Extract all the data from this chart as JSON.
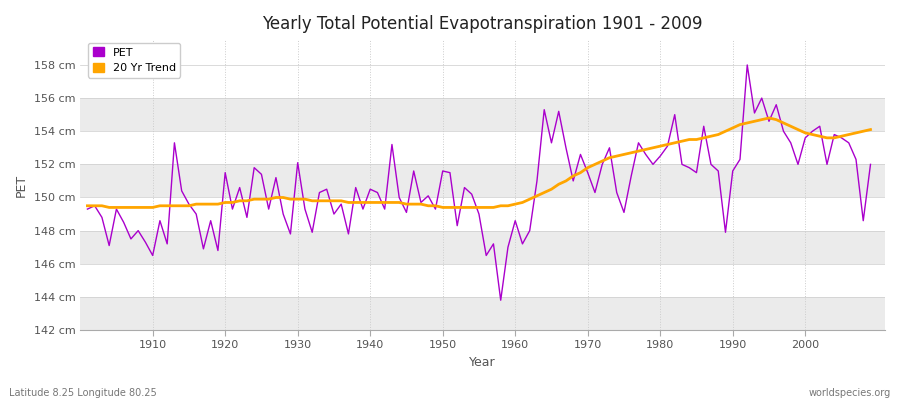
{
  "title": "Yearly Total Potential Evapotranspiration 1901 - 2009",
  "xlabel": "Year",
  "ylabel": "PET",
  "lat_lon_label": "Latitude 8.25 Longitude 80.25",
  "source_label": "worldspecies.org",
  "pet_color": "#AA00CC",
  "trend_color": "#FFA500",
  "bg_color": "#FFFFFF",
  "plot_bg_color": "#FFFFFF",
  "band_color": "#EBEBEB",
  "grid_color": "#CCCCCC",
  "ylim": [
    142,
    159
  ],
  "ytick_labels": [
    "142 cm",
    "144 cm",
    "146 cm",
    "148 cm",
    "150 cm",
    "152 cm",
    "154 cm",
    "156 cm",
    "158 cm"
  ],
  "ytick_values": [
    142,
    144,
    146,
    148,
    150,
    152,
    154,
    156,
    158
  ],
  "xlim": [
    1900,
    2011
  ],
  "xticks": [
    1910,
    1920,
    1930,
    1940,
    1950,
    1960,
    1970,
    1980,
    1990,
    2000
  ],
  "years": [
    1901,
    1902,
    1903,
    1904,
    1905,
    1906,
    1907,
    1908,
    1909,
    1910,
    1911,
    1912,
    1913,
    1914,
    1915,
    1916,
    1917,
    1918,
    1919,
    1920,
    1921,
    1922,
    1923,
    1924,
    1925,
    1926,
    1927,
    1928,
    1929,
    1930,
    1931,
    1932,
    1933,
    1934,
    1935,
    1936,
    1937,
    1938,
    1939,
    1940,
    1941,
    1942,
    1943,
    1944,
    1945,
    1946,
    1947,
    1948,
    1949,
    1950,
    1951,
    1952,
    1953,
    1954,
    1955,
    1956,
    1957,
    1958,
    1959,
    1960,
    1961,
    1962,
    1963,
    1964,
    1965,
    1966,
    1967,
    1968,
    1969,
    1970,
    1971,
    1972,
    1973,
    1974,
    1975,
    1976,
    1977,
    1978,
    1979,
    1980,
    1981,
    1982,
    1983,
    1984,
    1985,
    1986,
    1987,
    1988,
    1989,
    1990,
    1991,
    1992,
    1993,
    1994,
    1995,
    1996,
    1997,
    1998,
    1999,
    2000,
    2001,
    2002,
    2003,
    2004,
    2005,
    2006,
    2007,
    2008,
    2009
  ],
  "pet_values": [
    149.3,
    149.5,
    148.8,
    147.1,
    149.3,
    148.5,
    147.5,
    148.0,
    147.3,
    146.5,
    148.6,
    147.2,
    153.3,
    150.4,
    149.6,
    149.0,
    146.9,
    148.6,
    146.8,
    151.5,
    149.3,
    150.6,
    148.8,
    151.8,
    151.4,
    149.3,
    151.2,
    149.0,
    147.8,
    152.1,
    149.3,
    147.9,
    150.3,
    150.5,
    149.0,
    149.6,
    147.8,
    150.6,
    149.3,
    150.5,
    150.3,
    149.3,
    153.2,
    150.0,
    149.1,
    151.6,
    149.7,
    150.1,
    149.3,
    151.6,
    151.5,
    148.3,
    150.6,
    150.2,
    149.0,
    146.5,
    147.2,
    143.8,
    147.0,
    148.6,
    147.2,
    148.0,
    151.0,
    155.3,
    153.3,
    155.2,
    153.0,
    151.0,
    152.6,
    151.5,
    150.3,
    152.0,
    153.0,
    150.3,
    149.1,
    151.3,
    153.3,
    152.6,
    152.0,
    152.5,
    153.1,
    155.0,
    152.0,
    151.8,
    151.5,
    154.3,
    152.0,
    151.6,
    147.9,
    151.6,
    152.3,
    158.0,
    155.1,
    156.0,
    154.6,
    155.6,
    154.0,
    153.3,
    152.0,
    153.6,
    154.0,
    154.3,
    152.0,
    153.8,
    153.6,
    153.3,
    152.3,
    148.6,
    152.0
  ],
  "trend_years": [
    1901,
    1902,
    1903,
    1904,
    1905,
    1906,
    1907,
    1908,
    1909,
    1910,
    1911,
    1912,
    1913,
    1914,
    1915,
    1916,
    1917,
    1918,
    1919,
    1920,
    1921,
    1922,
    1923,
    1924,
    1925,
    1926,
    1927,
    1928,
    1929,
    1930,
    1931,
    1932,
    1933,
    1934,
    1935,
    1936,
    1937,
    1938,
    1939,
    1940,
    1941,
    1942,
    1943,
    1944,
    1945,
    1946,
    1947,
    1948,
    1949,
    1950,
    1951,
    1952,
    1953,
    1954,
    1955,
    1956,
    1957,
    1958,
    1959,
    1960,
    1961,
    1962,
    1963,
    1964,
    1965,
    1966,
    1967,
    1968,
    1969,
    1970,
    1971,
    1972,
    1973,
    1974,
    1975,
    1976,
    1977,
    1978,
    1979,
    1980,
    1981,
    1982,
    1983,
    1984,
    1985,
    1986,
    1987,
    1988,
    1989,
    1990,
    1991,
    1992,
    1993,
    1994,
    1995,
    1996,
    1997,
    1998,
    1999,
    2000,
    2001,
    2002,
    2003,
    2004,
    2005,
    2006,
    2007,
    2008,
    2009
  ],
  "trend_values": [
    149.5,
    149.5,
    149.5,
    149.4,
    149.4,
    149.4,
    149.4,
    149.4,
    149.4,
    149.4,
    149.5,
    149.5,
    149.5,
    149.5,
    149.5,
    149.6,
    149.6,
    149.6,
    149.6,
    149.7,
    149.7,
    149.8,
    149.8,
    149.9,
    149.9,
    149.9,
    150.0,
    150.0,
    149.9,
    149.9,
    149.9,
    149.8,
    149.8,
    149.8,
    149.8,
    149.8,
    149.7,
    149.7,
    149.7,
    149.7,
    149.7,
    149.7,
    149.7,
    149.7,
    149.6,
    149.6,
    149.6,
    149.5,
    149.5,
    149.4,
    149.4,
    149.4,
    149.4,
    149.4,
    149.4,
    149.4,
    149.4,
    149.5,
    149.5,
    149.6,
    149.7,
    149.9,
    150.1,
    150.3,
    150.5,
    150.8,
    151.0,
    151.3,
    151.5,
    151.8,
    152.0,
    152.2,
    152.4,
    152.5,
    152.6,
    152.7,
    152.8,
    152.9,
    153.0,
    153.1,
    153.2,
    153.3,
    153.4,
    153.5,
    153.5,
    153.6,
    153.7,
    153.8,
    154.0,
    154.2,
    154.4,
    154.5,
    154.6,
    154.7,
    154.8,
    154.7,
    154.5,
    154.3,
    154.1,
    153.9,
    153.8,
    153.7,
    153.6,
    153.6,
    153.7,
    153.8,
    153.9,
    154.0,
    154.1
  ]
}
